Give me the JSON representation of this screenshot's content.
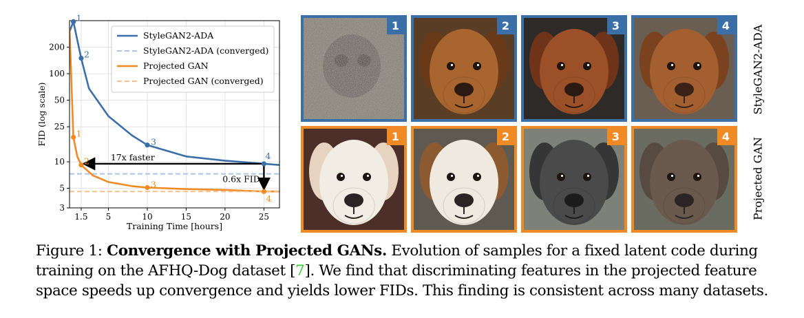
{
  "chart_data": {
    "type": "line",
    "xlabel": "Training Time [hours]",
    "ylabel": "FID (log scale)",
    "yscale": "log",
    "xlim": [
      0,
      27
    ],
    "ylim": [
      3,
      400
    ],
    "xticks": [
      1.5,
      5,
      10,
      15,
      20,
      25
    ],
    "xtick_labels": [
      "1.5",
      "5",
      "10",
      "15",
      "20",
      "25"
    ],
    "yticks": [
      3,
      5,
      10,
      25,
      50,
      100,
      200
    ],
    "ytick_labels": [
      "3",
      "5",
      "10",
      "25",
      "50",
      "100",
      "200"
    ],
    "grid": true,
    "legend_position": "top-right",
    "series": [
      {
        "name": "StyleGAN2-ADA",
        "color": "#3a6fa8",
        "dash": "solid",
        "x": [
          0.0,
          0.5,
          1.5,
          2.5,
          5,
          8,
          10,
          15,
          20,
          25,
          27
        ],
        "y": [
          300,
          390,
          150,
          68,
          33,
          20,
          15.5,
          11.5,
          10.3,
          9.5,
          9.2
        ],
        "markers": [
          {
            "x": 0.5,
            "y": 390,
            "label": "1"
          },
          {
            "x": 1.5,
            "y": 150,
            "label": "2"
          },
          {
            "x": 10,
            "y": 15.5,
            "label": "3"
          },
          {
            "x": 25,
            "y": 9.5,
            "label": "4"
          }
        ]
      },
      {
        "name": "StyleGAN2-ADA (converged)",
        "color": "#aac3e6",
        "dash": "dashed",
        "x": [
          0,
          27
        ],
        "y": [
          7.3,
          7.3
        ]
      },
      {
        "name": "Projected GAN",
        "color": "#f08a24",
        "dash": "solid",
        "x": [
          0.0,
          0.5,
          1.0,
          1.5,
          3,
          5,
          8,
          10,
          15,
          20,
          25,
          27
        ],
        "y": [
          330,
          19,
          11.5,
          9.2,
          7.0,
          5.9,
          5.3,
          5.1,
          4.9,
          4.8,
          4.6,
          4.6
        ],
        "markers": [
          {
            "x": 0.5,
            "y": 19,
            "label": "1"
          },
          {
            "x": 1.5,
            "y": 9.2,
            "label": "2"
          },
          {
            "x": 10,
            "y": 5.1,
            "label": "3"
          },
          {
            "x": 25,
            "y": 4.6,
            "label": "4"
          }
        ]
      },
      {
        "name": "Projected GAN (converged)",
        "color": "#f7c089",
        "dash": "dashed",
        "x": [
          0,
          27
        ],
        "y": [
          4.6,
          4.6
        ]
      }
    ],
    "annotations": [
      {
        "text": "17x faster",
        "from": [
          25,
          9.5
        ],
        "to": [
          1.5,
          9.5
        ]
      },
      {
        "text": "0.6x FID",
        "from": [
          25,
          9.5
        ],
        "to": [
          25,
          4.6
        ]
      }
    ]
  },
  "colors": {
    "stylegan_frame": "#3a6fa8",
    "projected_frame": "#f08a24"
  },
  "grid": {
    "row_labels": {
      "stylegan": "StyleGAN2-ADA",
      "projected": "Projected GAN"
    },
    "stylegan_tiles": [
      {
        "num": "1",
        "desc": "noise blob"
      },
      {
        "num": "2",
        "desc": "brown dog"
      },
      {
        "num": "3",
        "desc": "mastiff"
      },
      {
        "num": "4",
        "desc": "brown dog"
      }
    ],
    "projected_tiles": [
      {
        "num": "1",
        "desc": "white dog"
      },
      {
        "num": "2",
        "desc": "white-brown dog"
      },
      {
        "num": "3",
        "desc": "gray dog"
      },
      {
        "num": "4",
        "desc": "brown-gray dog"
      }
    ]
  },
  "caption": {
    "prefix": "Figure 1: ",
    "bold": "Convergence with Projected GANs.",
    "text1": " Evolution of samples for a fixed latent code during training on the AFHQ-Dog dataset [",
    "cite": "7",
    "text2": "]. We find that discriminating features in the projected feature space speeds up convergence and yields lower FIDs. This finding is consistent across many datasets."
  }
}
